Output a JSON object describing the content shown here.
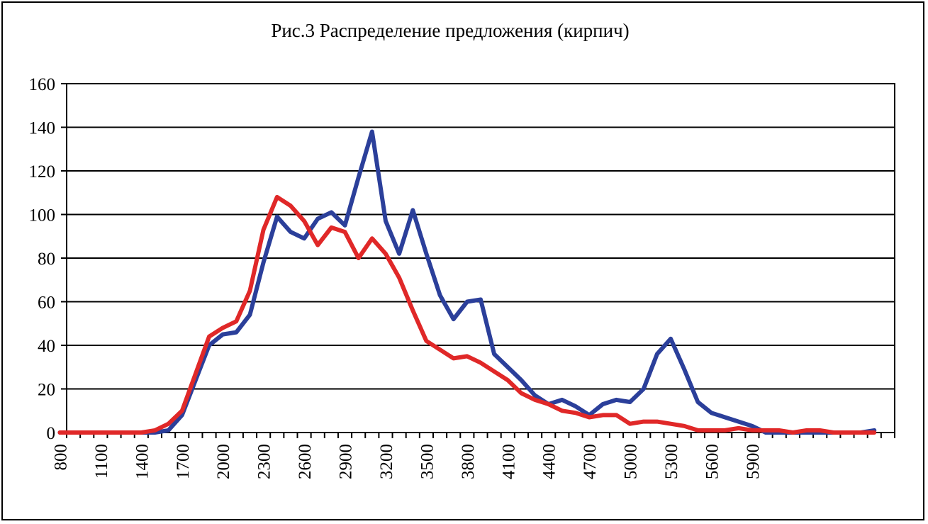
{
  "chart_data": {
    "type": "line",
    "title": "Рис.3 Распределение предложения  (кирпич)",
    "xlabel": "",
    "ylabel": "",
    "ylim": [
      0,
      160
    ],
    "yticks": [
      0,
      20,
      40,
      60,
      80,
      100,
      120,
      140,
      160
    ],
    "x": [
      800,
      900,
      1000,
      1100,
      1200,
      1300,
      1400,
      1500,
      1600,
      1700,
      1800,
      1900,
      2000,
      2100,
      2200,
      2300,
      2400,
      2500,
      2600,
      2700,
      2800,
      2900,
      3000,
      3100,
      3200,
      3300,
      3400,
      3500,
      3600,
      3700,
      3800,
      3900,
      4000,
      4100,
      4200,
      4300,
      4400,
      4500,
      4600,
      4700,
      4800,
      4900,
      5000,
      5100,
      5200,
      5300,
      5400,
      5500,
      5600,
      5700,
      5800,
      5900,
      6000,
      6100,
      6200,
      6300,
      6400,
      6500,
      6600,
      6700,
      6800
    ],
    "xtick_labels": [
      "800",
      "1100",
      "1400",
      "1700",
      "2000",
      "2300",
      "2600",
      "2900",
      "3200",
      "3500",
      "3800",
      "4100",
      "4400",
      "4700",
      "5000",
      "5300",
      "5600",
      "5900"
    ],
    "grid": true,
    "legend": "none",
    "series": [
      {
        "color": "#2b3f9a",
        "values": [
          0,
          0,
          0,
          0,
          0,
          0,
          0,
          0,
          1,
          8,
          24,
          40,
          45,
          46,
          54,
          78,
          99,
          92,
          89,
          98,
          101,
          95,
          117,
          138,
          97,
          82,
          102,
          82,
          63,
          52,
          60,
          61,
          36,
          30,
          24,
          17,
          13,
          15,
          12,
          8,
          13,
          15,
          14,
          20,
          36,
          43,
          29,
          14,
          9,
          7,
          5,
          3,
          0,
          0,
          0,
          0,
          0,
          0,
          0,
          0,
          1
        ]
      },
      {
        "color": "#e02828",
        "values": [
          0,
          0,
          0,
          0,
          0,
          0,
          0,
          1,
          4,
          10,
          27,
          44,
          48,
          51,
          65,
          93,
          108,
          104,
          97,
          86,
          94,
          92,
          80,
          89,
          82,
          71,
          56,
          42,
          38,
          34,
          35,
          32,
          28,
          24,
          18,
          15,
          13,
          10,
          9,
          7,
          8,
          8,
          4,
          5,
          5,
          4,
          3,
          1,
          1,
          1,
          2,
          1,
          1,
          1,
          0,
          1,
          1,
          0,
          0,
          0,
          0
        ]
      }
    ]
  }
}
